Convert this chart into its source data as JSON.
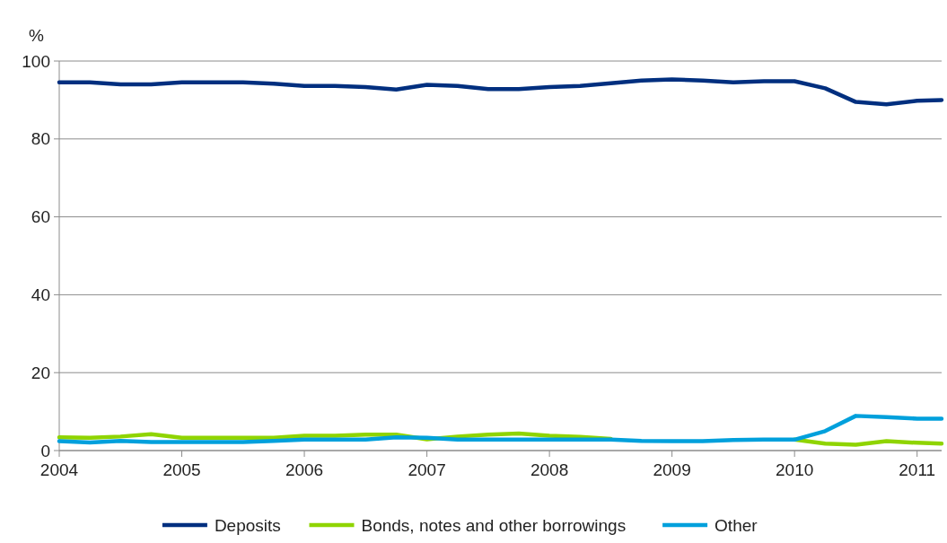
{
  "chart_data": {
    "type": "line",
    "ylabel": "%",
    "x": [
      2004,
      2004.25,
      2004.5,
      2004.75,
      2005,
      2005.25,
      2005.5,
      2005.75,
      2006,
      2006.25,
      2006.5,
      2006.75,
      2007,
      2007.25,
      2007.5,
      2007.75,
      2008,
      2008.25,
      2008.5,
      2008.75,
      2009,
      2009.25,
      2009.5,
      2009.75,
      2010,
      2010.25,
      2010.5,
      2010.75,
      2011,
      2011.2
    ],
    "series": [
      {
        "name": "Deposits",
        "color": "#002f7f",
        "values": [
          94.5,
          94.5,
          94,
          94,
          94.5,
          94.5,
          94.5,
          94.2,
          93.6,
          93.6,
          93.3,
          92.7,
          93.9,
          93.6,
          92.8,
          92.8,
          93.3,
          93.6,
          94.3,
          95,
          95.3,
          95,
          94.5,
          94.8,
          94.8,
          93,
          89.5,
          88.9,
          89.8,
          90
        ]
      },
      {
        "name": "Bonds, notes and other borrowings",
        "color": "#8fd400",
        "values": [
          3.4,
          3.3,
          3.6,
          4.2,
          3.3,
          3.3,
          3.3,
          3.3,
          3.8,
          3.8,
          4.1,
          4.1,
          2.9,
          3.6,
          4.1,
          4.4,
          3.8,
          3.5,
          3,
          null,
          null,
          null,
          null,
          null,
          2.8,
          1.8,
          1.5,
          2.4,
          2,
          1.8
        ]
      },
      {
        "name": "Other",
        "color": "#00a0dc",
        "values": [
          2.4,
          2.1,
          2.5,
          2.2,
          2.2,
          2.2,
          2.2,
          2.5,
          2.8,
          2.8,
          2.8,
          3.4,
          3.3,
          2.8,
          2.8,
          2.8,
          2.8,
          2.8,
          2.8,
          2.5,
          2.4,
          2.4,
          2.7,
          2.8,
          2.8,
          5,
          8.9,
          8.6,
          8.2,
          8.2
        ]
      }
    ],
    "xlim": [
      2004,
      2011.2
    ],
    "xticks": [
      2004,
      2005,
      2006,
      2007,
      2008,
      2009,
      2010,
      2011
    ],
    "ylim": [
      0,
      100
    ],
    "yticks": [
      0,
      20,
      40,
      60,
      80,
      100
    ],
    "grid": "y",
    "legend": "bottom",
    "marker": "none",
    "line_style": "solid"
  }
}
